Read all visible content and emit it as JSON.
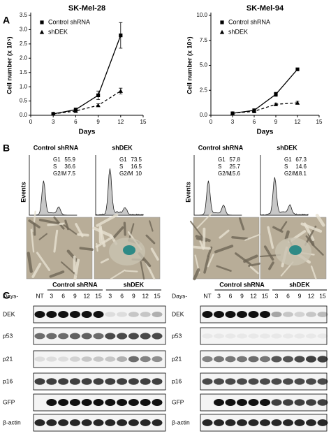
{
  "panel_labels": [
    "A",
    "B",
    "C"
  ],
  "chart_data": [
    {
      "type": "line",
      "title": "SK-Mel-28",
      "xlabel": "Days",
      "ylabel": "Cell number (x 10⁵)",
      "x": [
        3,
        6,
        9,
        12
      ],
      "xlim": [
        0,
        15
      ],
      "xticks": [
        0,
        3,
        6,
        9,
        12,
        15
      ],
      "ylim": [
        0,
        3.5
      ],
      "yticks": [
        {
          "value": 0,
          "label": "0.0"
        },
        {
          "value": 0.5,
          "label": "0.5"
        },
        {
          "value": 1,
          "label": "1.0"
        },
        {
          "value": 1.5,
          "label": "1.5"
        },
        {
          "value": 2,
          "label": "2.0"
        },
        {
          "value": 2.5,
          "label": "2.5"
        },
        {
          "value": 3,
          "label": "3.0"
        },
        {
          "value": 3.5,
          "label": "3.5"
        }
      ],
      "legend": "upper left",
      "series": [
        {
          "name": "Control shRNA",
          "color": "#000000",
          "marker": "square",
          "linestyle": "solid",
          "values": [
            0.05,
            0.2,
            0.7,
            2.8
          ],
          "errors": [
            0.02,
            0.05,
            0.15,
            0.45
          ]
        },
        {
          "name": "shDEK",
          "color": "#000000",
          "marker": "triangle",
          "linestyle": "dashed",
          "values": [
            0.05,
            0.15,
            0.35,
            0.85
          ],
          "errors": [
            0.02,
            0.03,
            0.05,
            0.1
          ]
        }
      ]
    },
    {
      "type": "line",
      "title": "SK-Mel-94",
      "xlabel": "Days",
      "ylabel": "Cell number (x 10⁵)",
      "x": [
        3,
        6,
        9,
        12
      ],
      "xlim": [
        0,
        15
      ],
      "xticks": [
        0,
        3,
        6,
        9,
        12,
        15
      ],
      "ylim": [
        0,
        10
      ],
      "yticks": [
        {
          "value": 0,
          "label": "0.0"
        },
        {
          "value": 2.5,
          "label": "2.5"
        },
        {
          "value": 5,
          "label": "5.0"
        },
        {
          "value": 7.5,
          "label": "7.5"
        },
        {
          "value": 10,
          "label": "10.0"
        }
      ],
      "legend": "upper left",
      "series": [
        {
          "name": "Control shRNA",
          "color": "#000000",
          "marker": "square",
          "linestyle": "solid",
          "values": [
            0.2,
            0.5,
            2.1,
            4.6
          ],
          "errors": [
            0.05,
            0.1,
            0.2,
            0.1
          ]
        },
        {
          "name": "shDEK",
          "color": "#000000",
          "marker": "triangle",
          "linestyle": "dashed",
          "values": [
            0.2,
            0.4,
            1.1,
            1.25
          ],
          "errors": [
            0.03,
            0.05,
            0.1,
            0.15
          ]
        }
      ]
    }
  ],
  "flow_cytometry": {
    "ylabel": "Events",
    "samples": [
      {
        "title": "Control shRNA",
        "phases": [
          "G1",
          "S",
          "G2/M"
        ],
        "percentages": [
          55.9,
          36.6,
          7.5
        ]
      },
      {
        "title": "shDEK",
        "phases": [
          "G1",
          "S",
          "G2/M"
        ],
        "percentages": [
          73.5,
          16.5,
          10
        ]
      },
      {
        "title": "Control shRNA",
        "phases": [
          "G1",
          "S",
          "G2/M"
        ],
        "percentages": [
          57.8,
          25.7,
          15.6
        ]
      },
      {
        "title": "shDEK",
        "phases": [
          "G1",
          "S",
          "G2/M"
        ],
        "percentages": [
          67.3,
          14.6,
          18.1
        ]
      }
    ]
  },
  "western_blots": [
    {
      "groups": [
        "Control shRNA",
        "shDEK"
      ],
      "lane_prefix": "Days-",
      "lanes": [
        "NT",
        "3",
        "6",
        "9",
        "12",
        "15",
        "3",
        "6",
        "9",
        "12",
        "15"
      ],
      "proteins": [
        "DEK",
        "p53",
        "p21",
        "p16",
        "GFP",
        "β-actin"
      ]
    },
    {
      "groups": [
        "Control shRNA",
        "shDEK"
      ],
      "lane_prefix": "Days-",
      "lanes": [
        "NT",
        "3",
        "6",
        "9",
        "12",
        "15",
        "3",
        "6",
        "9",
        "12",
        "15"
      ],
      "proteins": [
        "DEK",
        "p53",
        "p21",
        "p16",
        "GFP",
        "β-actin"
      ]
    }
  ]
}
